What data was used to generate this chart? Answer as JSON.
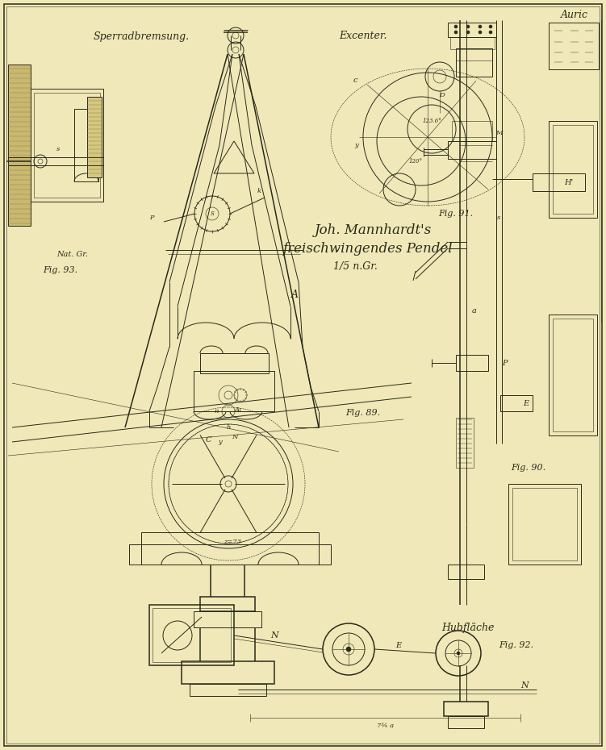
{
  "background_color": "#f0e8b8",
  "ink_color": "#2a2a1a",
  "title_line1": "Joh. Mannhardt's",
  "title_line2": "freischwingendes Pendel",
  "title_line3": "1/5 n.Gr.",
  "label_sperrad": "Sperradbremsung.",
  "label_excenter": "Excenter.",
  "label_fig89": "Fig. 89.",
  "label_fig90": "Fig. 90.",
  "label_fig91": "Fig. 91.",
  "label_fig92": "Fig. 92.",
  "label_fig93": "Fig. 93.",
  "label_nat_gr": "Nat. Gr.",
  "label_hubflache": "Hubfläche",
  "label_auric": "Auric",
  "label_N1": "N",
  "label_N2": "N",
  "label_E": "E",
  "label_P": "P",
  "label_H": "H'",
  "label_a": "a",
  "label_s": "s",
  "label_c": "c",
  "label_y": "y",
  "label_M": "M",
  "label_A": "A",
  "label_k": "k",
  "label_n": "n",
  "label_h": "h",
  "label_C": "C",
  "angle1": "123.6°",
  "angle2": "120°",
  "z73": "z=73"
}
